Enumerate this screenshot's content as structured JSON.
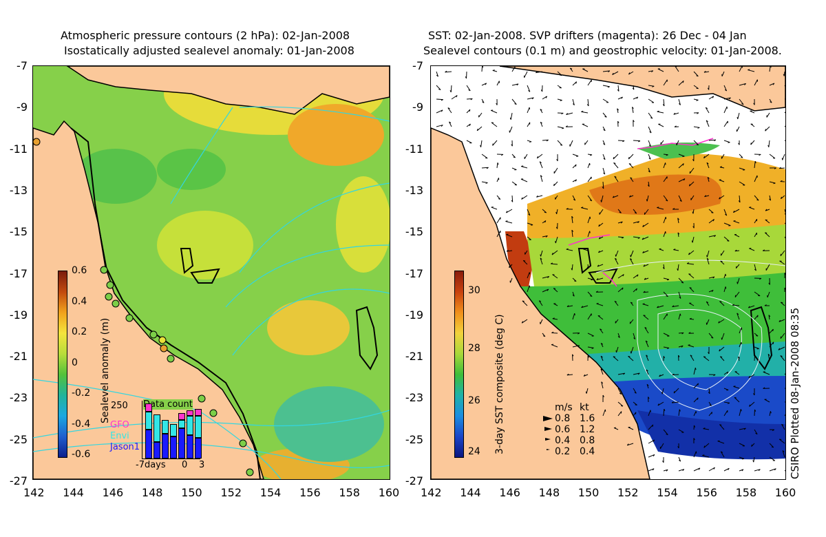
{
  "left_panel": {
    "title_line1": "Atmospheric pressure contours (2 hPa): 02-Jan-2008",
    "title_line2": "Isostatically adjusted sealevel anomaly: 01-Jan-2008",
    "colorbar": {
      "label": "Sealevel anomaly (m)",
      "ticks": [
        "0.6",
        "0.4",
        "0.2",
        "0",
        "-0.2",
        "-0.4",
        "-0.6"
      ],
      "colormap": [
        "#7a1b0c",
        "#c24a0e",
        "#f1a21c",
        "#f4e43c",
        "#b8dc3a",
        "#54c23a",
        "#22b39a",
        "#1ba8e0",
        "#1e5fcf",
        "#0c1f8c"
      ]
    },
    "data_count": {
      "title": "Data count",
      "ymax_label": "250",
      "xlabels": [
        "-7days",
        "0",
        "3"
      ],
      "legend": [
        {
          "name": "GFO",
          "color": "#ff33cc"
        },
        {
          "name": "Envi",
          "color": "#33e6e6"
        },
        {
          "name": "Jason1",
          "color": "#1a1aff"
        }
      ],
      "bars": [
        {
          "jason1": 0.52,
          "envi": 0.33,
          "gfo": 0.15
        },
        {
          "jason1": 0.3,
          "envi": 0.5,
          "gfo": 0.0
        },
        {
          "jason1": 0.45,
          "envi": 0.25,
          "gfo": 0.0
        },
        {
          "jason1": 0.4,
          "envi": 0.22,
          "gfo": 0.0
        },
        {
          "jason1": 0.55,
          "envi": 0.15,
          "gfo": 0.12
        },
        {
          "jason1": 0.42,
          "envi": 0.35,
          "gfo": 0.1
        },
        {
          "jason1": 0.38,
          "envi": 0.4,
          "gfo": 0.12
        }
      ]
    }
  },
  "right_panel": {
    "title_line1": "SST: 02-Jan-2008. SVP drifters (magenta): 26 Dec - 04 Jan",
    "title_line2": "Sealevel contours (0.1 m) and geostrophic velocity: 01-Jan-2008.",
    "colorbar": {
      "label": "3-day SST composite (deg C)",
      "ticks": [
        "30",
        "28",
        "26",
        "24"
      ],
      "colormap": [
        "#8a1c0c",
        "#c8420e",
        "#f0901c",
        "#f2d23c",
        "#a8d83a",
        "#3fbe3a",
        "#1eb2a8",
        "#1b8ee0",
        "#1a45c8",
        "#0a1680"
      ]
    },
    "velocity_legend": {
      "header_ms": "m/s",
      "header_kt": "kt",
      "rows": [
        {
          "ms": "0.8",
          "kt": "1.6"
        },
        {
          "ms": "0.6",
          "kt": "1.2"
        },
        {
          "ms": "0.4",
          "kt": "0.8"
        },
        {
          "ms": "0.2",
          "kt": "0.4"
        }
      ]
    }
  },
  "axes": {
    "x_ticks": [
      "142",
      "144",
      "146",
      "148",
      "150",
      "152",
      "154",
      "156",
      "158",
      "160"
    ],
    "y_ticks": [
      "-7",
      "-9",
      "-11",
      "-13",
      "-15",
      "-17",
      "-19",
      "-21",
      "-23",
      "-25",
      "-27"
    ]
  },
  "colors": {
    "land": "#fbc89a",
    "contour_cyan": "#33d6e0",
    "coastline": "#000000"
  },
  "credit": "CSIRO Plotted 08-Jan-2008 08:35"
}
